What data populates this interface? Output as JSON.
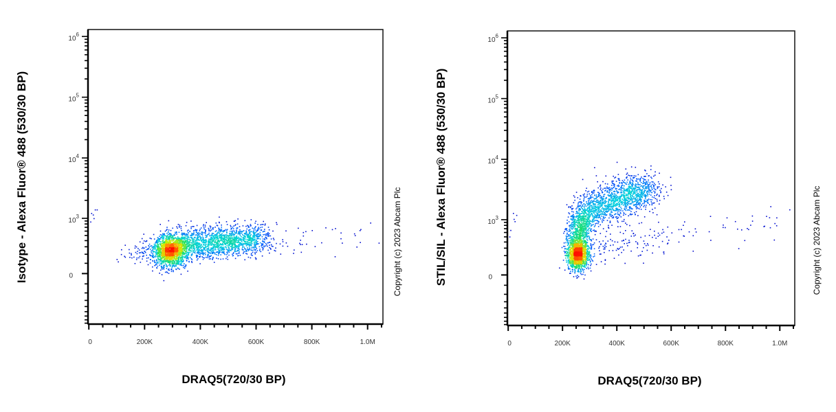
{
  "chart_data": [
    {
      "type": "scatter",
      "subtype": "flow-cytometry-density-dot-plot",
      "xlabel": "DRAQ5(720/30 BP)",
      "ylabel": "Isotype - Alexa Fluor® 488 (530/30 BP)",
      "xscale": "linear",
      "yscale": "biexponential",
      "xlim": [
        -3000,
        1055000
      ],
      "ylim": [
        -830,
        1300000
      ],
      "xticks": [
        {
          "v": 0,
          "label": "0"
        },
        {
          "v": 200000,
          "label": "200K"
        },
        {
          "v": 400000,
          "label": "400K"
        },
        {
          "v": 600000,
          "label": "600K"
        },
        {
          "v": 800000,
          "label": "800K"
        },
        {
          "v": 1000000,
          "label": "1.0M"
        }
      ],
      "yticks": [
        {
          "v": 0,
          "base": "0",
          "exp": ""
        },
        {
          "v": 1000,
          "base": "10",
          "exp": "3"
        },
        {
          "v": 10000,
          "base": "10",
          "exp": "4"
        },
        {
          "v": 100000,
          "base": "10",
          "exp": "5"
        },
        {
          "v": 1000000,
          "base": "10",
          "exp": "6"
        }
      ],
      "colormap": [
        "#0000c8",
        "#0060ff",
        "#00d0e0",
        "#20e060",
        "#d0f000",
        "#ffa000",
        "#ff1000"
      ],
      "copyright": "Copyright (c) 2023 Abcam Plc",
      "populations": [
        {
          "x0": 290000,
          "x1": 290000,
          "x_sd": 28000,
          "y0": 250,
          "y1": 250,
          "y_sd_asinh": 0.3,
          "n": 1600
        },
        {
          "x0": 320000,
          "x1": 620000,
          "x_sd": 30000,
          "y0": 330,
          "y1": 450,
          "y_sd_asinh": 0.28,
          "n": 1700
        },
        {
          "x0": 160000,
          "x1": 230000,
          "x_sd": 30000,
          "y0": 220,
          "y1": 260,
          "y_sd_asinh": 0.25,
          "n": 90
        },
        {
          "x0": 650000,
          "x1": 1000000,
          "x_sd": 60000,
          "y0": 400,
          "y1": 450,
          "y_sd_asinh": 0.35,
          "n": 45
        },
        {
          "x0": 15000,
          "x1": 25000,
          "x_sd": 8000,
          "y0": 900,
          "y1": 1000,
          "y_sd_asinh": 0.2,
          "n": 6
        }
      ]
    },
    {
      "type": "scatter",
      "subtype": "flow-cytometry-density-dot-plot",
      "xlabel": "DRAQ5(720/30 BP)",
      "ylabel": "STIL/SIL - Alexa Fluor® 488 (530/30 BP)",
      "xscale": "linear",
      "yscale": "biexponential",
      "xlim": [
        -3000,
        1055000
      ],
      "ylim": [
        -830,
        1300000
      ],
      "xticks": [
        {
          "v": 0,
          "label": "0"
        },
        {
          "v": 200000,
          "label": "200K"
        },
        {
          "v": 400000,
          "label": "400K"
        },
        {
          "v": 600000,
          "label": "600K"
        },
        {
          "v": 800000,
          "label": "800K"
        },
        {
          "v": 1000000,
          "label": "1.0M"
        }
      ],
      "yticks": [
        {
          "v": 0,
          "base": "0",
          "exp": ""
        },
        {
          "v": 1000,
          "base": "10",
          "exp": "3"
        },
        {
          "v": 10000,
          "base": "10",
          "exp": "4"
        },
        {
          "v": 100000,
          "base": "10",
          "exp": "5"
        },
        {
          "v": 1000000,
          "base": "10",
          "exp": "6"
        }
      ],
      "colormap": [
        "#0000c8",
        "#0060ff",
        "#00d0e0",
        "#20e060",
        "#d0f000",
        "#ffa000",
        "#ff1000"
      ],
      "copyright": "Copyright (c) 2023 Abcam Plc",
      "populations": [
        {
          "x0": 255000,
          "x1": 255000,
          "x_sd": 20000,
          "y0": 220,
          "y1": 220,
          "y_sd_asinh": 0.3,
          "n": 1300
        },
        {
          "x0": 255000,
          "x1": 270000,
          "x_sd": 22000,
          "y0": 350,
          "y1": 1200,
          "y_sd_asinh": 0.3,
          "n": 700
        },
        {
          "x0": 290000,
          "x1": 520000,
          "x_sd": 35000,
          "y0": 1300,
          "y1": 3300,
          "y_sd_asinh": 0.35,
          "n": 1400
        },
        {
          "x0": 300000,
          "x1": 560000,
          "x_sd": 40000,
          "y0": 250,
          "y1": 500,
          "y_sd_asinh": 0.3,
          "n": 120
        },
        {
          "x0": 600000,
          "x1": 1000000,
          "x_sd": 60000,
          "y0": 500,
          "y1": 900,
          "y_sd_asinh": 0.4,
          "n": 45
        },
        {
          "x0": 8000,
          "x1": 30000,
          "x_sd": 8000,
          "y0": 800,
          "y1": 1600,
          "y_sd_asinh": 0.3,
          "n": 7
        }
      ]
    }
  ]
}
